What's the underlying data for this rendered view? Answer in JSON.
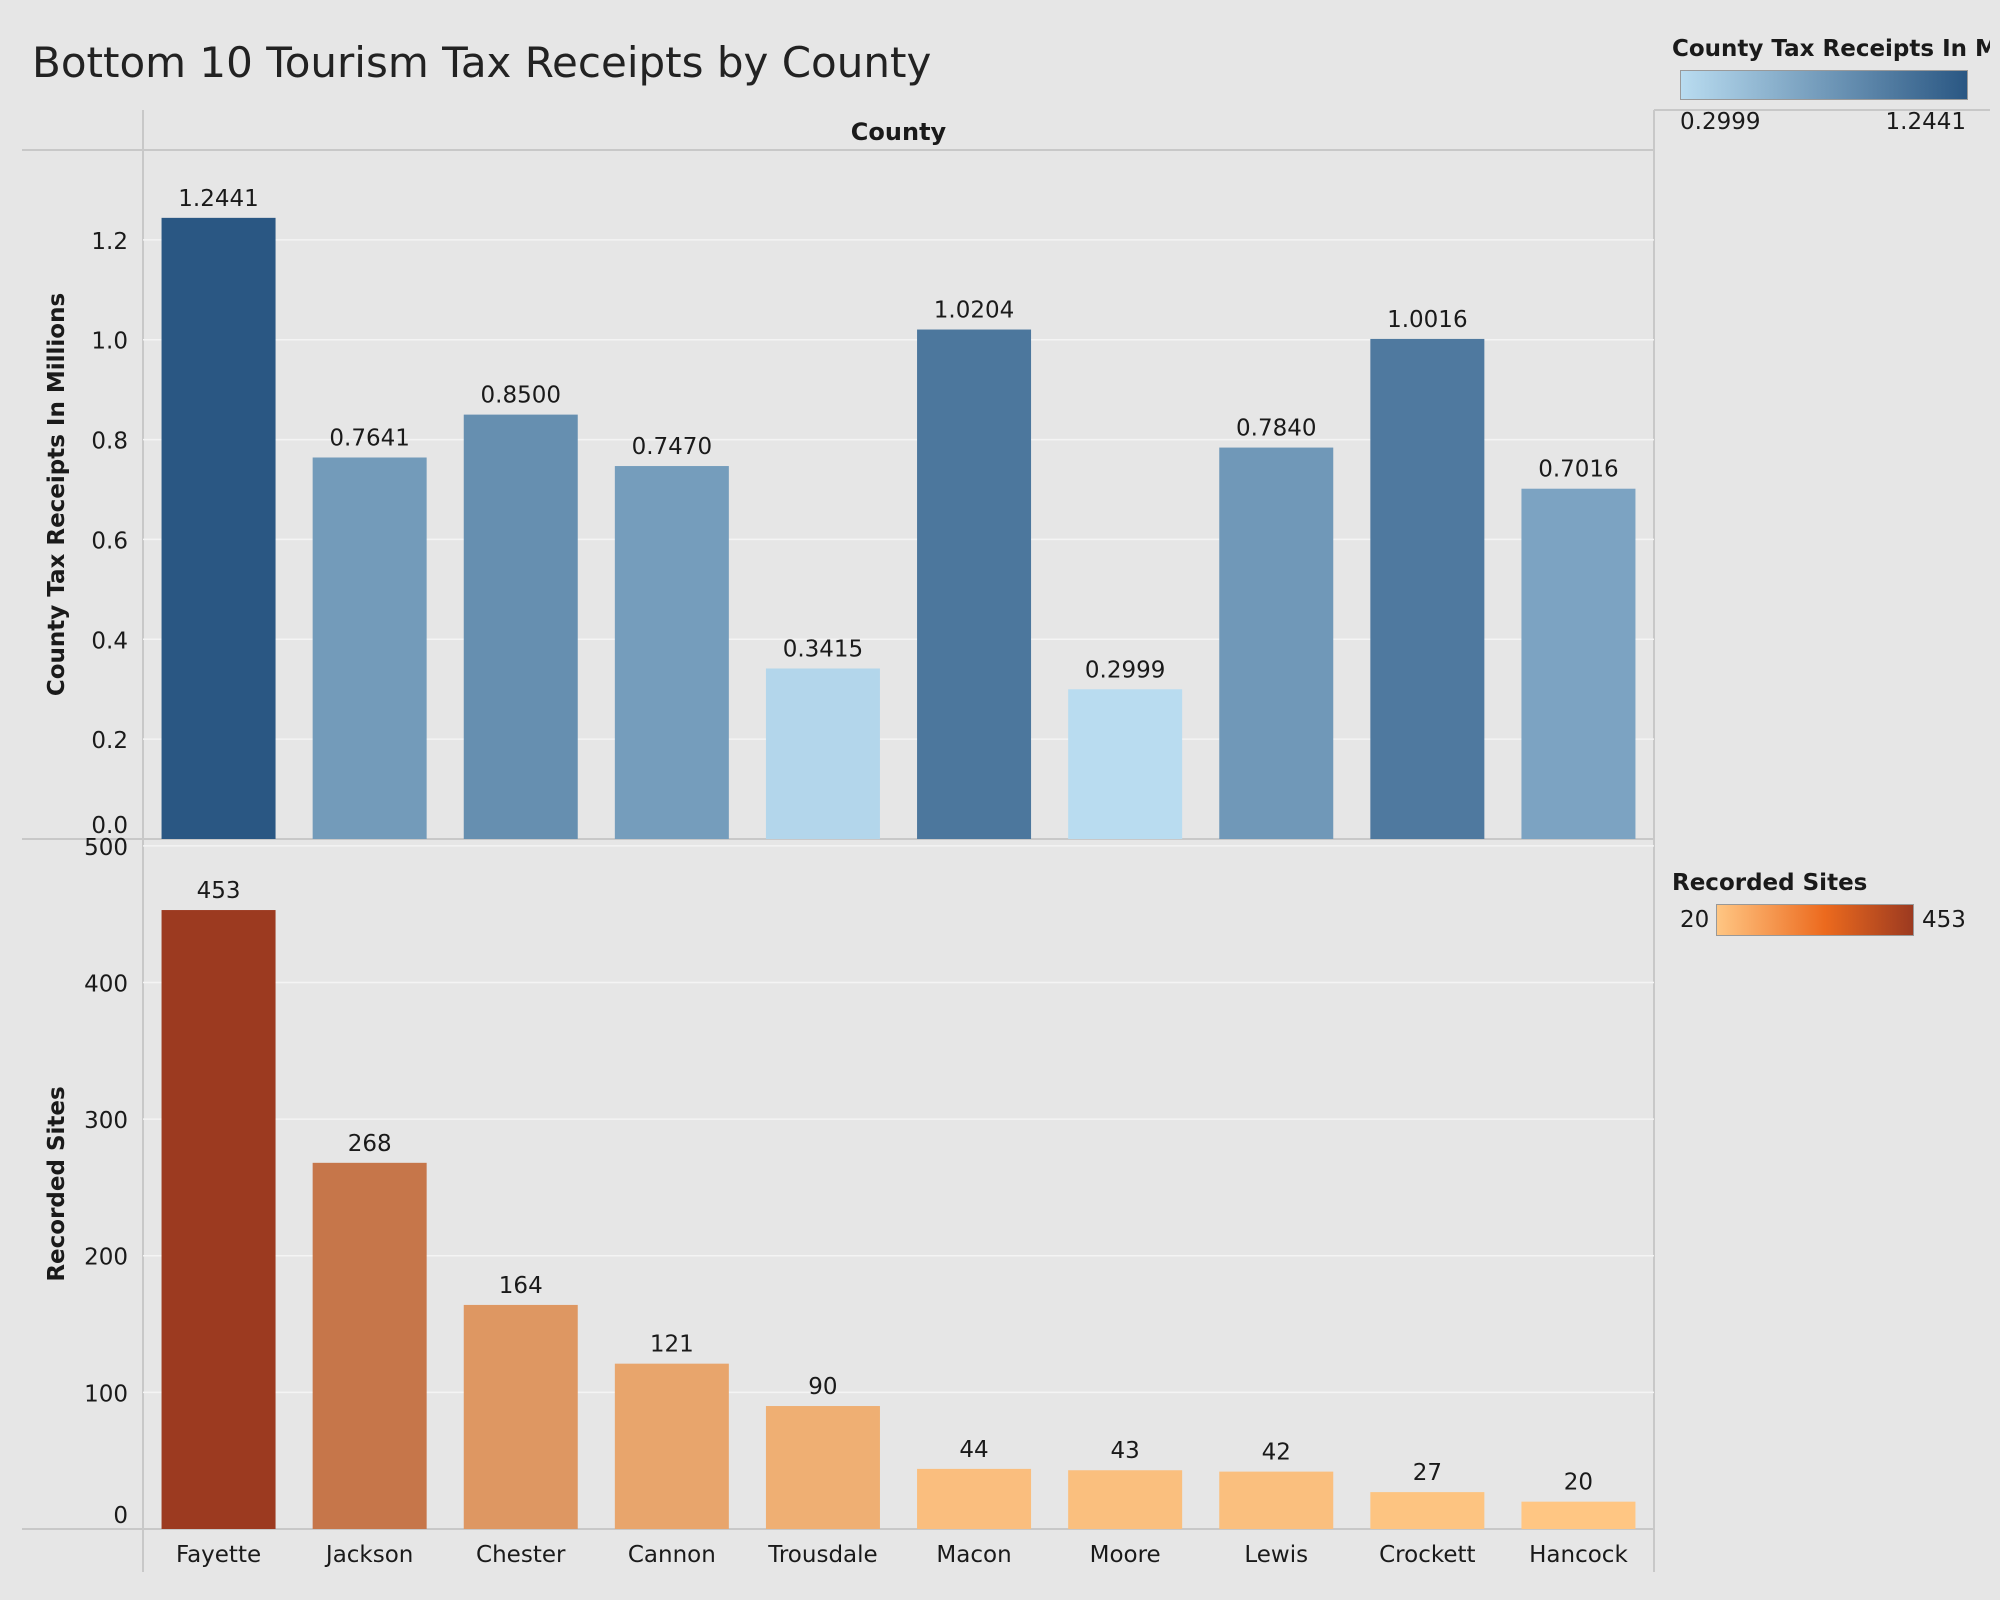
{
  "chart_data": {
    "type": "bar",
    "title": "Bottom 10 Tourism Tax Receipts by County",
    "column_header": "County",
    "categories": [
      "Fayette",
      "Jackson",
      "Chester",
      "Cannon",
      "Trousdale",
      "Macon",
      "Moore",
      "Lewis",
      "Crockett",
      "Hancock"
    ],
    "panels": [
      {
        "measure": "County Tax Receipts In Millions",
        "ylabel": "County Tax Receipts In Millions",
        "ylim": [
          0,
          1.38
        ],
        "yticks": [
          "0.0",
          "0.2",
          "0.4",
          "0.6",
          "0.8",
          "1.0",
          "1.2"
        ],
        "values": [
          1.2441,
          0.7641,
          0.85,
          0.747,
          0.3415,
          1.0204,
          0.2999,
          0.784,
          1.0016,
          0.7016
        ],
        "labels": [
          "1.2441",
          "0.7641",
          "0.8500",
          "0.7470",
          "0.3415",
          "1.0204",
          "0.2999",
          "0.7840",
          "1.0016",
          "0.7016"
        ],
        "color_low": "#b9dcf0",
        "color_high": "#2a5783"
      },
      {
        "measure": "Recorded Sites",
        "ylabel": "Recorded Sites",
        "ylim": [
          0,
          505
        ],
        "yticks": [
          "0",
          "100",
          "200",
          "300",
          "400",
          "500"
        ],
        "values": [
          453,
          268,
          164,
          121,
          90,
          44,
          43,
          42,
          27,
          20
        ],
        "labels": [
          "453",
          "268",
          "164",
          "121",
          "90",
          "44",
          "43",
          "42",
          "27",
          "20"
        ],
        "color_low": "#ffc683",
        "color_high": "#9c3a20"
      }
    ],
    "grid": true
  },
  "legends": {
    "tax": {
      "title": "County Tax Receipts In Mi..",
      "min_label": "0.2999",
      "max_label": "1.2441"
    },
    "sites": {
      "title": "Recorded Sites",
      "min_label": "20",
      "max_label": "453"
    }
  }
}
